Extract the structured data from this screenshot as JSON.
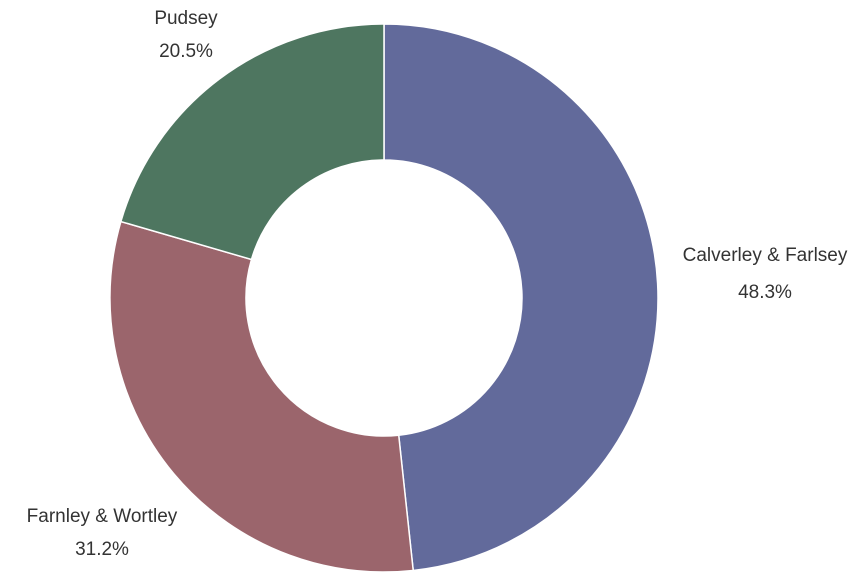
{
  "chart_data": {
    "type": "pie",
    "variant": "donut",
    "title": "",
    "legend": "none",
    "slices": [
      {
        "label": "Calverley & Farlsey",
        "value": 48.3,
        "value_label": "48.3%",
        "color": "#626a9b"
      },
      {
        "label": "Farnley & Wortley",
        "value": 31.2,
        "value_label": "31.2%",
        "color": "#9b656c"
      },
      {
        "label": "Pudsey",
        "value": 20.5,
        "value_label": "20.5%",
        "color": "#4e7660"
      }
    ]
  }
}
